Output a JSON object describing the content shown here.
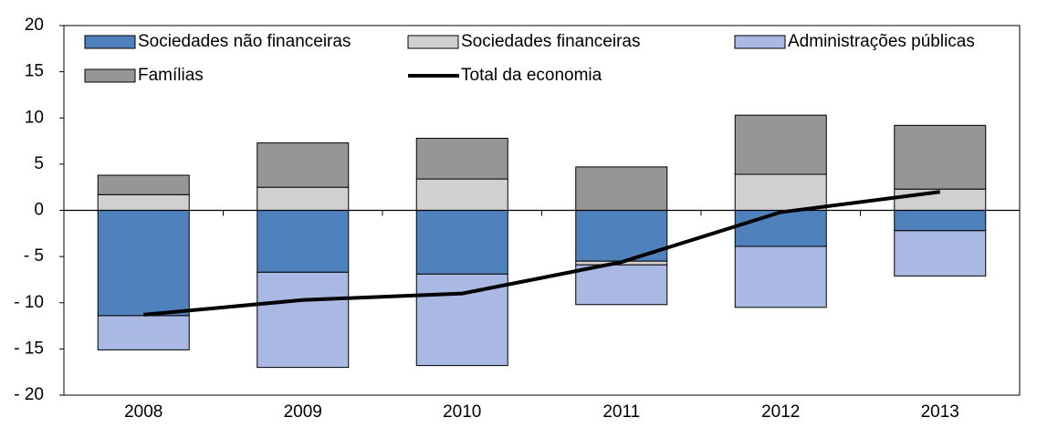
{
  "chart_data": {
    "type": "stacked_bar",
    "categories": [
      "2008",
      "2009",
      "2010",
      "2011",
      "2012",
      "2013"
    ],
    "series": [
      {
        "name": "Sociedades não financeiras",
        "type": "bar",
        "color": "#4f81bd",
        "values": [
          -11.4,
          -6.7,
          -6.9,
          -5.5,
          -3.9,
          -2.2
        ]
      },
      {
        "name": "Sociedades financeiras",
        "type": "bar",
        "color": "#d0d0d0",
        "values": [
          1.7,
          2.5,
          3.4,
          -0.4,
          3.9,
          2.3
        ]
      },
      {
        "name": "Administrações públicas",
        "type": "bar",
        "color": "#a9b9e3",
        "values": [
          -3.7,
          -10.3,
          -9.9,
          -4.3,
          -6.6,
          -4.9
        ]
      },
      {
        "name": "Famílias",
        "type": "bar",
        "color": "#969696",
        "values": [
          2.1,
          4.8,
          4.4,
          4.7,
          6.4,
          6.9
        ]
      },
      {
        "name": "Total da economia",
        "type": "line",
        "color": "#000000",
        "values": [
          -11.3,
          -9.7,
          -9.0,
          -5.6,
          -0.2,
          2.0
        ]
      }
    ],
    "ylim": [
      -20,
      20
    ],
    "yticks": [
      {
        "value": -20,
        "label": "- 20"
      },
      {
        "value": -15,
        "label": "- 15"
      },
      {
        "value": -10,
        "label": "- 10"
      },
      {
        "value": -5,
        "label": "- 5"
      },
      0,
      5,
      10,
      15,
      20
    ],
    "grid": false,
    "legend": "top"
  }
}
